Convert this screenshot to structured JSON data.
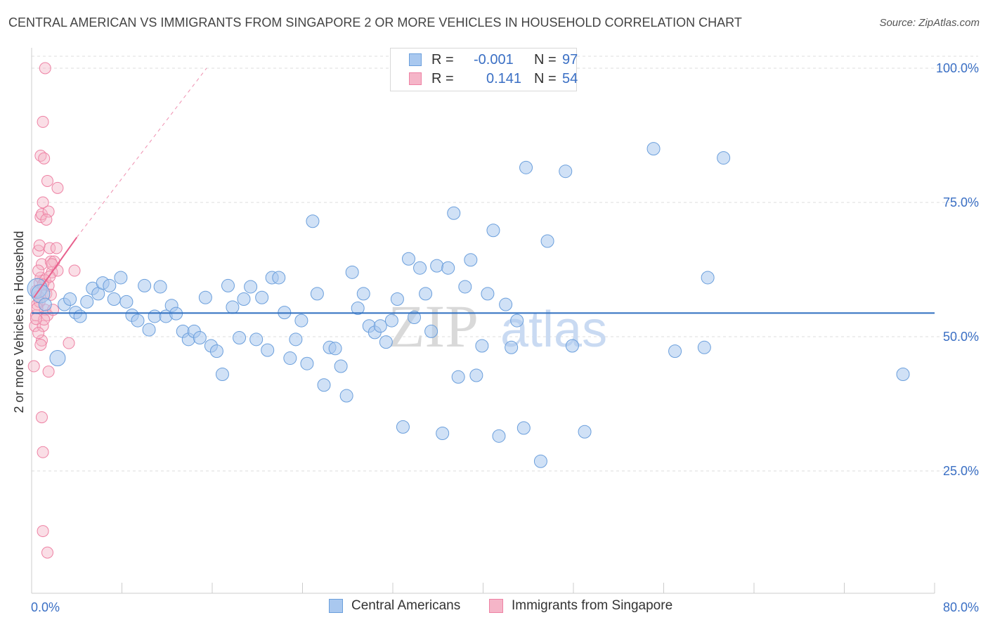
{
  "header": {
    "title": "CENTRAL AMERICAN VS IMMIGRANTS FROM SINGAPORE 2 OR MORE VEHICLES IN HOUSEHOLD CORRELATION CHART",
    "source": "Source: ZipAtlas.com"
  },
  "legend": {
    "rows": [
      {
        "r_label": "R =",
        "r_value": "-0.001",
        "n_label": "N =",
        "n_value": "97",
        "color": "#a9c8ef"
      },
      {
        "r_label": "R =",
        "r_value": "0.141",
        "n_label": "N =",
        "n_value": "54",
        "color": "#f5b5c8"
      }
    ]
  },
  "bottom_legend": [
    {
      "label": "Central Americans",
      "color": "#a9c8ef"
    },
    {
      "label": "Immigrants from Singapore",
      "color": "#f5b5c8"
    }
  ],
  "watermark": {
    "part1": "ZIP",
    "part2": "atlas"
  },
  "chart_data": {
    "type": "scatter",
    "title": "CENTRAL AMERICAN VS IMMIGRANTS FROM SINGAPORE 2 OR MORE VEHICLES IN HOUSEHOLD CORRELATION CHART",
    "xlabel": "",
    "ylabel": "2 or more Vehicles in Household",
    "xlim": [
      0,
      80
    ],
    "ylim": [
      0,
      100
    ],
    "x_tick_labels": [
      "0.0%",
      "80.0%"
    ],
    "y_ticks": [
      25,
      50,
      75,
      100
    ],
    "y_tick_labels": [
      "25.0%",
      "50.0%",
      "75.0%",
      "100.0%"
    ],
    "grid": true,
    "colors": {
      "blue": "#6b9fdc",
      "blue_fill": "#a9c8ef",
      "pink": "#ee82a4",
      "pink_fill": "#f5b5c8",
      "blue_line": "#2f6fc0",
      "pink_line": "#e8608d",
      "tick_label": "#3a6fc4"
    },
    "series": [
      {
        "name": "Central Americans",
        "color": "#a9c8ef",
        "trend": {
          "x": [
            0,
            80
          ],
          "y": [
            54.4,
            54.4
          ]
        },
        "points": [
          [
            0.5,
            59
          ],
          [
            0.8,
            58
          ],
          [
            1.2,
            56
          ],
          [
            2.3,
            46
          ],
          [
            2.9,
            56
          ],
          [
            3.4,
            57
          ],
          [
            3.9,
            54.5
          ],
          [
            4.3,
            53.8
          ],
          [
            4.9,
            56.5
          ],
          [
            5.4,
            59
          ],
          [
            5.9,
            58
          ],
          [
            6.3,
            60
          ],
          [
            6.9,
            59.5
          ],
          [
            7.3,
            57
          ],
          [
            7.9,
            61
          ],
          [
            8.4,
            56.5
          ],
          [
            8.9,
            54
          ],
          [
            9.4,
            53
          ],
          [
            10.0,
            59.5
          ],
          [
            10.4,
            51.3
          ],
          [
            10.9,
            53.8
          ],
          [
            11.4,
            59.3
          ],
          [
            11.9,
            53.8
          ],
          [
            12.4,
            55.8
          ],
          [
            12.8,
            54.3
          ],
          [
            13.4,
            51
          ],
          [
            13.9,
            49.5
          ],
          [
            14.4,
            51
          ],
          [
            14.9,
            49.8
          ],
          [
            15.4,
            57.3
          ],
          [
            15.9,
            48.3
          ],
          [
            16.4,
            47.3
          ],
          [
            16.9,
            43
          ],
          [
            17.4,
            59.5
          ],
          [
            17.8,
            55.5
          ],
          [
            18.4,
            49.8
          ],
          [
            18.8,
            57
          ],
          [
            19.4,
            59.3
          ],
          [
            19.9,
            49.5
          ],
          [
            20.4,
            57.3
          ],
          [
            20.9,
            47.5
          ],
          [
            21.3,
            61
          ],
          [
            21.9,
            61
          ],
          [
            22.4,
            54.5
          ],
          [
            22.9,
            46
          ],
          [
            23.4,
            49.5
          ],
          [
            23.9,
            53
          ],
          [
            24.4,
            45
          ],
          [
            24.9,
            71.5
          ],
          [
            25.3,
            58
          ],
          [
            25.9,
            41
          ],
          [
            26.4,
            48
          ],
          [
            26.9,
            47.8
          ],
          [
            27.4,
            44.5
          ],
          [
            27.9,
            39
          ],
          [
            28.4,
            62
          ],
          [
            28.9,
            55.3
          ],
          [
            29.4,
            58
          ],
          [
            29.9,
            52
          ],
          [
            30.4,
            50.8
          ],
          [
            30.9,
            52
          ],
          [
            31.4,
            49
          ],
          [
            31.9,
            53
          ],
          [
            32.4,
            57
          ],
          [
            32.9,
            33.2
          ],
          [
            33.4,
            64.5
          ],
          [
            33.9,
            53.6
          ],
          [
            34.4,
            62.8
          ],
          [
            34.9,
            58
          ],
          [
            35.4,
            51
          ],
          [
            35.9,
            63.2
          ],
          [
            36.4,
            32
          ],
          [
            36.9,
            62.8
          ],
          [
            37.4,
            73
          ],
          [
            37.8,
            42.5
          ],
          [
            38.4,
            59.3
          ],
          [
            38.9,
            64.3
          ],
          [
            39.4,
            42.8
          ],
          [
            39.9,
            48.3
          ],
          [
            40.4,
            58
          ],
          [
            40.9,
            69.8
          ],
          [
            41.4,
            31.5
          ],
          [
            42.0,
            56
          ],
          [
            42.5,
            48
          ],
          [
            43.0,
            53
          ],
          [
            43.6,
            33
          ],
          [
            43.8,
            81.5
          ],
          [
            45.1,
            26.8
          ],
          [
            45.7,
            67.8
          ],
          [
            47.3,
            80.8
          ],
          [
            47.9,
            48.3
          ],
          [
            49.0,
            32.3
          ],
          [
            55.1,
            85
          ],
          [
            57.0,
            47.3
          ],
          [
            59.6,
            48
          ],
          [
            59.9,
            61
          ],
          [
            61.3,
            83.3
          ],
          [
            77.2,
            43
          ]
        ]
      },
      {
        "name": "Immigrants from Singapore",
        "color": "#f5b5c8",
        "trend": {
          "x": [
            0.2,
            4.0
          ],
          "y": [
            57.3,
            68.5
          ]
        },
        "trend_dashed": {
          "x": [
            4.0,
            15.5
          ],
          "y": [
            68.5,
            100
          ]
        },
        "points": [
          [
            0.2,
            44.5
          ],
          [
            0.3,
            52
          ],
          [
            0.4,
            54
          ],
          [
            0.5,
            56
          ],
          [
            0.6,
            57.5
          ],
          [
            0.7,
            60
          ],
          [
            0.8,
            61
          ],
          [
            0.9,
            63.5
          ],
          [
            0.6,
            66
          ],
          [
            0.7,
            67
          ],
          [
            0.8,
            72.3
          ],
          [
            0.9,
            72.8
          ],
          [
            1.0,
            75
          ],
          [
            0.8,
            83.7
          ],
          [
            1.1,
            83.2
          ],
          [
            1.0,
            90
          ],
          [
            1.2,
            100
          ],
          [
            1.4,
            79
          ],
          [
            1.5,
            73.3
          ],
          [
            1.6,
            66.5
          ],
          [
            1.7,
            64
          ],
          [
            1.8,
            62
          ],
          [
            1.3,
            58
          ],
          [
            1.2,
            55
          ],
          [
            1.4,
            54
          ],
          [
            1.0,
            52
          ],
          [
            0.9,
            49.3
          ],
          [
            0.8,
            48.5
          ],
          [
            1.5,
            43.5
          ],
          [
            0.9,
            35
          ],
          [
            1.0,
            28.5
          ],
          [
            1.0,
            13.8
          ],
          [
            1.4,
            9.8
          ],
          [
            2.2,
            66.5
          ],
          [
            2.3,
            62.3
          ],
          [
            2.3,
            77.7
          ],
          [
            3.3,
            48.8
          ],
          [
            3.8,
            62.3
          ],
          [
            1.2,
            60.5
          ],
          [
            1.5,
            59.5
          ],
          [
            1.7,
            57.8
          ],
          [
            0.7,
            56.5
          ],
          [
            1.9,
            55
          ],
          [
            1.1,
            53.2
          ],
          [
            0.6,
            62.3
          ],
          [
            2.0,
            64
          ],
          [
            1.3,
            71.8
          ],
          [
            0.4,
            58.5
          ],
          [
            0.5,
            55.3
          ],
          [
            0.6,
            50.7
          ],
          [
            1.0,
            59.7
          ],
          [
            1.6,
            61.2
          ],
          [
            0.4,
            53.3
          ],
          [
            1.8,
            63.5
          ]
        ]
      }
    ]
  }
}
